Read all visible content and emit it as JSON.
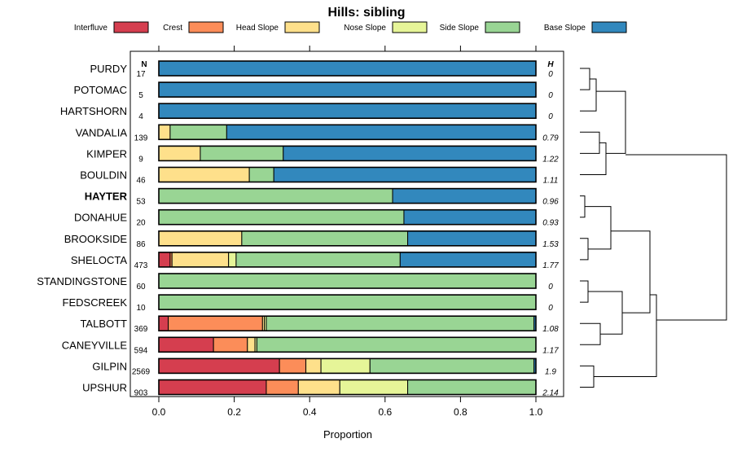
{
  "chart_data": {
    "type": "bar",
    "orientation": "horizontal",
    "stacked": true,
    "title": "Hills: sibling",
    "xlabel": "Proportion",
    "xlim": [
      0,
      1
    ],
    "xticks": [
      "0.0",
      "0.2",
      "0.4",
      "0.6",
      "0.8",
      "1.0"
    ],
    "n_header": "N",
    "h_header": "H",
    "legend": [
      {
        "name": "Interfluve",
        "color": "#d53e4f"
      },
      {
        "name": "Crest",
        "color": "#fc8d59"
      },
      {
        "name": "Head Slope",
        "color": "#fee08b"
      },
      {
        "name": "Nose Slope",
        "color": "#e6f598"
      },
      {
        "name": "Side Slope",
        "color": "#99d594"
      },
      {
        "name": "Base Slope",
        "color": "#3288bd"
      }
    ],
    "rows": [
      {
        "label": "PURDY",
        "n": "17",
        "h": "0",
        "bold": false,
        "values": [
          0,
          0,
          0,
          0,
          0,
          1.0
        ]
      },
      {
        "label": "POTOMAC",
        "n": "5",
        "h": "0",
        "bold": false,
        "values": [
          0,
          0,
          0,
          0,
          0,
          1.0
        ]
      },
      {
        "label": "HARTSHORN",
        "n": "4",
        "h": "0",
        "bold": false,
        "values": [
          0,
          0,
          0,
          0,
          0,
          1.0
        ]
      },
      {
        "label": "VANDALIA",
        "n": "139",
        "h": "0.79",
        "bold": false,
        "values": [
          0,
          0,
          0.03,
          0,
          0.15,
          0.82
        ]
      },
      {
        "label": "KIMPER",
        "n": "9",
        "h": "1.22",
        "bold": false,
        "values": [
          0,
          0,
          0.11,
          0,
          0.22,
          0.67
        ]
      },
      {
        "label": "BOULDIN",
        "n": "46",
        "h": "1.11",
        "bold": false,
        "values": [
          0,
          0,
          0.24,
          0,
          0.065,
          0.695
        ]
      },
      {
        "label": "HAYTER",
        "n": "53",
        "h": "0.96",
        "bold": true,
        "values": [
          0,
          0,
          0,
          0,
          0.62,
          0.38
        ]
      },
      {
        "label": "DONAHUE",
        "n": "20",
        "h": "0.93",
        "bold": false,
        "values": [
          0,
          0,
          0,
          0,
          0.65,
          0.35
        ]
      },
      {
        "label": "BROOKSIDE",
        "n": "86",
        "h": "1.53",
        "bold": false,
        "values": [
          0,
          0,
          0.22,
          0,
          0.44,
          0.34
        ]
      },
      {
        "label": "SHELOCTA",
        "n": "473",
        "h": "1.77",
        "bold": false,
        "values": [
          0.03,
          0.005,
          0.15,
          0.02,
          0.435,
          0.36
        ]
      },
      {
        "label": "STANDINGSTONE",
        "n": "60",
        "h": "0",
        "bold": false,
        "values": [
          0,
          0,
          0,
          0,
          1.0,
          0
        ]
      },
      {
        "label": "FEDSCREEK",
        "n": "10",
        "h": "0",
        "bold": false,
        "values": [
          0,
          0,
          0,
          0,
          1.0,
          0
        ]
      },
      {
        "label": "TALBOTT",
        "n": "369",
        "h": "1.08",
        "bold": false,
        "values": [
          0.025,
          0.25,
          0.005,
          0.005,
          0.71,
          0.005
        ]
      },
      {
        "label": "CANEYVILLE",
        "n": "594",
        "h": "1.17",
        "bold": false,
        "values": [
          0.145,
          0.09,
          0.02,
          0.005,
          0.74,
          0
        ]
      },
      {
        "label": "GILPIN",
        "n": "2569",
        "h": "1.9",
        "bold": false,
        "values": [
          0.32,
          0.07,
          0.04,
          0.13,
          0.435,
          0.005
        ]
      },
      {
        "label": "UPSHUR",
        "n": "903",
        "h": "2.14",
        "bold": false,
        "values": [
          0.285,
          0.085,
          0.11,
          0.18,
          0.34,
          0
        ]
      }
    ]
  }
}
